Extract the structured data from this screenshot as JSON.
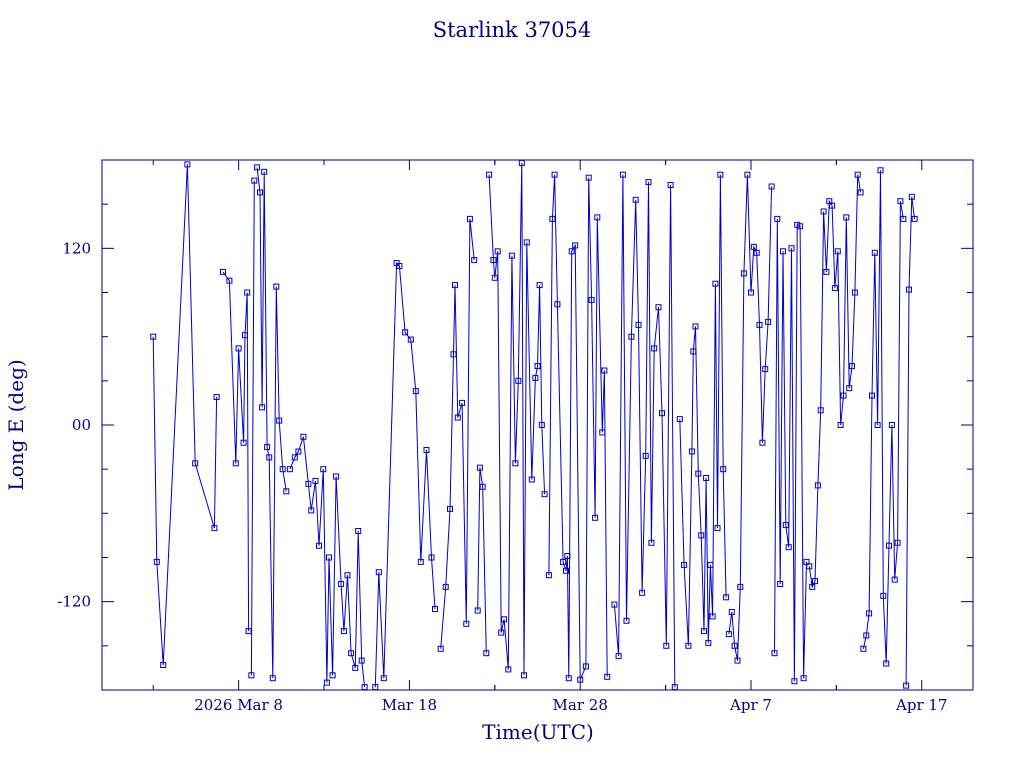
{
  "chart_data": {
    "type": "line",
    "title": "Starlink 37054",
    "xlabel": "Time(UTC)",
    "ylabel": "Long E (deg)",
    "xlim": [
      "2026-02-28T00:00",
      "2026-04-20T00:00"
    ],
    "ylim": [
      -180,
      180
    ],
    "x_ticks": [
      {
        "date": "2026-03-08",
        "label": "2026 Mar  8"
      },
      {
        "date": "2026-03-18",
        "label": "Mar 18"
      },
      {
        "date": "2026-03-28",
        "label": "Mar 28"
      },
      {
        "date": "2026-04-07",
        "label": "Apr  7"
      },
      {
        "date": "2026-04-17",
        "label": "Apr 17"
      }
    ],
    "y_ticks": [
      {
        "value": 120,
        "label": "120"
      },
      {
        "value": 0,
        "label": "00"
      },
      {
        "value": -120,
        "label": "-120"
      }
    ],
    "grid": false,
    "color": "#0000c8",
    "axis_color": "#000080",
    "series": [
      {
        "x": [
          "2026-03-03T00:00",
          "2026-03-03T05:00",
          "2026-03-03T14:00",
          "2026-03-05T00:00",
          "2026-03-05T11:00",
          "2026-03-06T14:00",
          "2026-03-06T17:00"
        ],
        "y": [
          60,
          -93,
          -163,
          177,
          -26,
          -70,
          19
        ]
      },
      {
        "x": [
          "2026-03-07T02:00",
          "2026-03-07T11:00",
          "2026-03-07T20:00",
          "2026-03-08T00:00",
          "2026-03-08T07:00",
          "2026-03-08T09:00",
          "2026-03-08T12:00",
          "2026-03-08T14:00"
        ],
        "y": [
          104,
          98,
          -26,
          52,
          -12,
          61,
          90,
          -140
        ]
      },
      {
        "x": [
          "2026-03-08T18:00",
          "2026-03-08T22:00"
        ],
        "y": [
          -170,
          166
        ]
      },
      {
        "x": [
          "2026-03-09T02:00",
          "2026-03-09T06:00",
          "2026-03-09T09:00",
          "2026-03-09T12:00",
          "2026-03-09T16:00",
          "2026-03-09T19:00",
          "2026-03-10T00:00",
          "2026-03-10T05:00",
          "2026-03-10T09:00",
          "2026-03-10T14:00",
          "2026-03-10T19:00"
        ],
        "y": [
          175,
          158,
          12,
          172,
          -15,
          -22,
          -172,
          94,
          3,
          -30,
          -45
        ]
      },
      {
        "x": [
          "2026-03-11T00:00",
          "2026-03-11T07:00",
          "2026-03-11T12:00",
          "2026-03-11T19:00",
          "2026-03-12T02:00",
          "2026-03-12T06:00",
          "2026-03-12T12:00",
          "2026-03-12T17:00",
          "2026-03-12T23:00",
          "2026-03-13T04:00",
          "2026-03-13T07:00",
          "2026-03-13T12:00",
          "2026-03-13T17:00",
          "2026-03-14T00:00",
          "2026-03-14T04:00",
          "2026-03-14T09:00",
          "2026-03-14T14:00",
          "2026-03-14T20:00",
          "2026-03-15T00:00",
          "2026-03-15T05:00",
          "2026-03-15T09:00"
        ],
        "y": [
          -30,
          -22,
          -18,
          -8,
          -40,
          -58,
          -38,
          -82,
          -30,
          -175,
          -90,
          -170,
          -35,
          -108,
          -140,
          -102,
          -155,
          -165,
          -72,
          -160,
          -178
        ]
      },
      {
        "x": [
          "2026-03-16T00:00",
          "2026-03-16T05:00",
          "2026-03-16T12:00",
          "2026-03-17T06:00",
          "2026-03-17T10:00",
          "2026-03-17T18:00",
          "2026-03-18T02:00",
          "2026-03-18T09:00",
          "2026-03-18T16:00",
          "2026-03-19T00:00",
          "2026-03-19T07:00",
          "2026-03-19T12:00"
        ],
        "y": [
          -178,
          -100,
          -172,
          110,
          108,
          63,
          58,
          23,
          -93,
          -17,
          -90,
          -125
        ]
      },
      {
        "x": [
          "2026-03-19T20:00",
          "2026-03-20T03:00",
          "2026-03-20T09:00",
          "2026-03-20T14:00",
          "2026-03-20T16:00",
          "2026-03-20T20:00",
          "2026-03-21T02:00",
          "2026-03-21T08:00",
          "2026-03-21T13:00",
          "2026-03-21T19:00"
        ],
        "y": [
          -152,
          -110,
          -57,
          48,
          95,
          5,
          15,
          -135,
          140,
          112
        ]
      },
      {
        "x": [
          "2026-03-22T00:00",
          "2026-03-22T03:00",
          "2026-03-22T07:00",
          "2026-03-22T12:00"
        ],
        "y": [
          -126,
          -29,
          -42,
          -155
        ]
      },
      {
        "x": [
          "2026-03-22T16:00",
          "2026-03-22T22:00",
          "2026-03-23T00:00",
          "2026-03-23T04:00",
          "2026-03-23T09:00",
          "2026-03-23T13:00",
          "2026-03-23T19:00",
          "2026-03-24T00:00",
          "2026-03-24T05:00",
          "2026-03-24T09:00",
          "2026-03-24T14:00",
          "2026-03-24T17:00",
          "2026-03-24T21:00",
          "2026-03-25T04:00",
          "2026-03-25T09:00",
          "2026-03-25T12:00",
          "2026-03-25T15:00",
          "2026-03-25T18:00",
          "2026-03-25T22:00"
        ],
        "y": [
          170,
          112,
          100,
          118,
          -141,
          -132,
          -166,
          115,
          -26,
          30,
          178,
          -170,
          124,
          -37,
          32,
          40,
          95,
          0,
          -47
        ]
      },
      {
        "x": [
          "2026-03-26T04:00",
          "2026-03-26T09:00",
          "2026-03-26T12:00",
          "2026-03-26T16:00",
          "2026-03-27T00:00",
          "2026-03-27T04:00",
          "2026-03-27T06:00",
          "2026-03-27T08:00",
          "2026-03-27T12:00",
          "2026-03-27T17:00",
          "2026-03-28T00:00",
          "2026-03-28T08:00",
          "2026-03-28T12:00",
          "2026-03-28T16:00",
          "2026-03-28T21:00",
          "2026-03-29T00:00",
          "2026-03-29T07:00",
          "2026-03-29T10:00",
          "2026-03-29T14:00"
        ],
        "y": [
          -102,
          140,
          170,
          82,
          -93,
          -99,
          -89,
          -172,
          118,
          122,
          -173,
          -164,
          168,
          85,
          -63,
          141,
          -5,
          37,
          -171
        ]
      },
      {
        "x": [
          "2026-03-30T00:00",
          "2026-03-30T06:00",
          "2026-03-30T12:00",
          "2026-03-30T17:00",
          "2026-03-31T00:00",
          "2026-03-31T06:00",
          "2026-03-31T10:00",
          "2026-03-31T15:00",
          "2026-03-31T20:00",
          "2026-04-01T00:00",
          "2026-04-01T04:00",
          "2026-04-01T08:00",
          "2026-04-01T14:00",
          "2026-04-01T19:00",
          "2026-04-02T01:00",
          "2026-04-02T07:00",
          "2026-04-02T13:00"
        ],
        "y": [
          -122,
          -157,
          170,
          -133,
          60,
          153,
          68,
          -114,
          -21,
          165,
          -80,
          52,
          80,
          8,
          -150,
          163,
          -178
        ]
      },
      {
        "x": [
          "2026-04-02T20:00",
          "2026-04-03T02:00",
          "2026-04-03T08:00",
          "2026-04-03T13:00",
          "2026-04-03T15:00",
          "2026-04-03T18:00",
          "2026-04-03T22:00",
          "2026-04-04T02:00",
          "2026-04-04T06:00",
          "2026-04-04T09:00",
          "2026-04-04T12:00",
          "2026-04-04T15:00",
          "2026-04-04T18:00",
          "2026-04-04T22:00",
          "2026-04-05T01:00",
          "2026-04-05T05:00",
          "2026-04-05T09:00",
          "2026-04-05T13:00"
        ],
        "y": [
          4,
          -95,
          -150,
          -18,
          50,
          67,
          -33,
          -75,
          -140,
          -36,
          -148,
          -95,
          -130,
          96,
          -70,
          170,
          -30,
          -117
        ]
      },
      {
        "x": [
          "2026-04-05T17:00",
          "2026-04-05T21:00",
          "2026-04-06T01:00",
          "2026-04-06T05:00",
          "2026-04-06T09:00",
          "2026-04-06T14:00",
          "2026-04-06T19:00",
          "2026-04-07T00:00",
          "2026-04-07T04:00",
          "2026-04-07T08:00",
          "2026-04-07T12:00",
          "2026-04-07T16:00",
          "2026-04-07T20:00",
          "2026-04-08T00:00",
          "2026-04-08T05:00"
        ],
        "y": [
          -142,
          -127,
          -150,
          -160,
          -110,
          103,
          170,
          90,
          121,
          117,
          68,
          -12,
          38,
          70,
          162
        ]
      },
      {
        "x": [
          "2026-04-08T09:00",
          "2026-04-08T13:00",
          "2026-04-08T17:00",
          "2026-04-08T21:00",
          "2026-04-09T01:00",
          "2026-04-09T05:00",
          "2026-04-09T09:00",
          "2026-04-09T13:00",
          "2026-04-09T17:00",
          "2026-04-09T21:00",
          "2026-04-10T02:00",
          "2026-04-10T06:00"
        ],
        "y": [
          -155,
          140,
          -108,
          118,
          -68,
          -83,
          120,
          -174,
          136,
          135,
          -172,
          -93
        ]
      },
      {
        "x": [
          "2026-04-10T10:00",
          "2026-04-10T14:00",
          "2026-04-10T18:00",
          "2026-04-10T22:00",
          "2026-04-11T02:00",
          "2026-04-11T06:00",
          "2026-04-11T10:00",
          "2026-04-11T14:00",
          "2026-04-11T18:00",
          "2026-04-11T22:00",
          "2026-04-12T02:00",
          "2026-04-12T06:00",
          "2026-04-12T10:00",
          "2026-04-12T14:00",
          "2026-04-12T18:00",
          "2026-04-12T22:00",
          "2026-04-13T02:00",
          "2026-04-13T06:00",
          "2026-04-13T10:00"
        ],
        "y": [
          -96,
          -110,
          -106,
          -41,
          10,
          145,
          104,
          152,
          149,
          93,
          118,
          0,
          20,
          141,
          25,
          40,
          90,
          170,
          158
        ]
      },
      {
        "x": [
          "2026-04-13T14:00",
          "2026-04-13T18:00",
          "2026-04-13T22:00",
          "2026-04-14T02:00",
          "2026-04-14T06:00",
          "2026-04-14T10:00",
          "2026-04-14T14:00",
          "2026-04-14T18:00",
          "2026-04-14T22:00",
          "2026-04-15T02:00",
          "2026-04-15T06:00",
          "2026-04-15T10:00",
          "2026-04-15T14:00",
          "2026-04-15T18:00",
          "2026-04-15T22:00"
        ],
        "y": [
          -152,
          -143,
          -128,
          20,
          117,
          0,
          173,
          -116,
          -162,
          -82,
          0,
          -105,
          -80,
          152,
          140
        ]
      },
      {
        "x": [
          "2026-04-16T02:00",
          "2026-04-16T06:00",
          "2026-04-16T10:00",
          "2026-04-16T14:00"
        ],
        "y": [
          -177,
          92,
          155,
          140
        ]
      }
    ]
  }
}
